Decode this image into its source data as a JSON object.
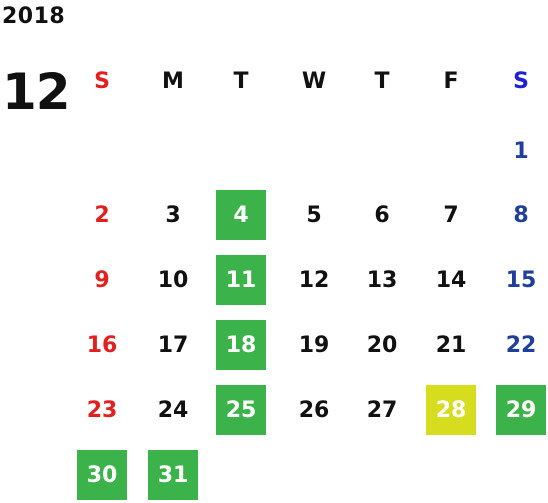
{
  "calendar": {
    "year": "2018",
    "month": "12",
    "weekdays": [
      "S",
      "M",
      "T",
      "W",
      "T",
      "F",
      "S"
    ],
    "days": {
      "d1": "1",
      "d2": "2",
      "d3": "3",
      "d4": "4",
      "d5": "5",
      "d6": "6",
      "d7": "7",
      "d8": "8",
      "d9": "9",
      "d10": "10",
      "d11": "11",
      "d12": "12",
      "d13": "13",
      "d14": "14",
      "d15": "15",
      "d16": "16",
      "d17": "17",
      "d18": "18",
      "d19": "19",
      "d20": "20",
      "d21": "21",
      "d22": "22",
      "d23": "23",
      "d24": "24",
      "d25": "25",
      "d26": "26",
      "d27": "27",
      "d28": "28",
      "d29": "29",
      "d30": "30",
      "d31": "31"
    },
    "colors": {
      "sunday": "#e22020",
      "saturday": "#1f3f9a",
      "highlight_green": "#3cb34a",
      "highlight_lime": "#d6dd1f"
    }
  }
}
